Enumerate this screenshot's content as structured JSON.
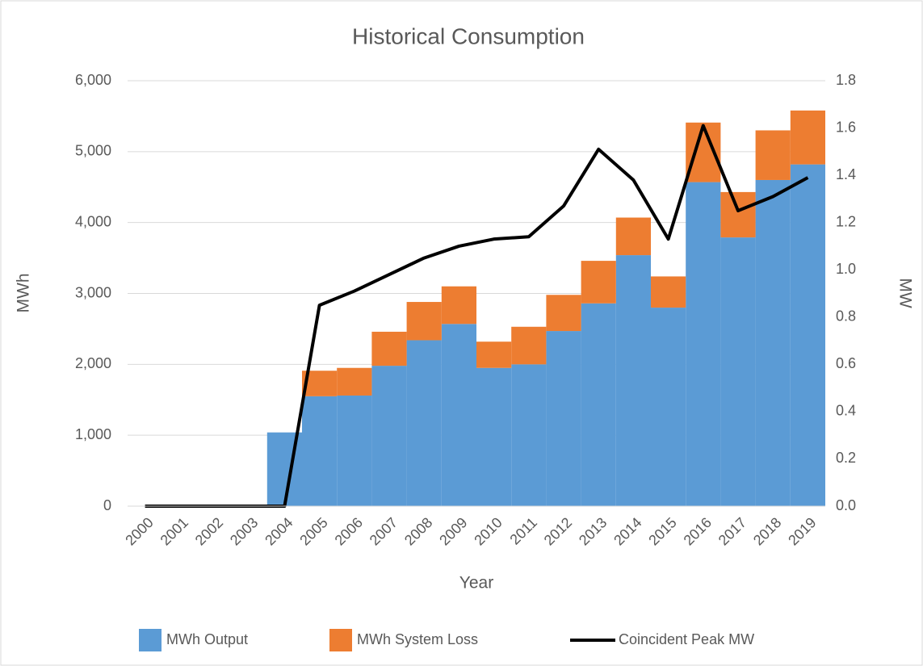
{
  "chart_data": {
    "type": "bar",
    "stacked": true,
    "title": "Historical Consumption",
    "xlabel": "Year",
    "ylabel": "MWh",
    "y2label": "MW",
    "categories": [
      "2000",
      "2001",
      "2002",
      "2003",
      "2004",
      "2005",
      "2006",
      "2007",
      "2008",
      "2009",
      "2010",
      "2011",
      "2012",
      "2013",
      "2014",
      "2015",
      "2016",
      "2017",
      "2018",
      "2019"
    ],
    "series": [
      {
        "name": "MWh Output",
        "type": "bar",
        "color": "#5b9bd5",
        "values": [
          0,
          0,
          0,
          0,
          1040,
          1550,
          1560,
          1980,
          2340,
          2570,
          1950,
          2000,
          2470,
          2860,
          3540,
          2800,
          4570,
          3790,
          4600,
          4820
        ]
      },
      {
        "name": "MWh System Loss",
        "type": "bar",
        "color": "#ed7d31",
        "values": [
          0,
          0,
          0,
          0,
          0,
          360,
          390,
          480,
          540,
          530,
          370,
          530,
          510,
          600,
          530,
          440,
          840,
          640,
          700,
          760
        ]
      },
      {
        "name": "Coincident Peak MW",
        "type": "line",
        "axis": "y2",
        "color": "#000000",
        "values": [
          0,
          0,
          0,
          0,
          0,
          0.85,
          0.91,
          0.98,
          1.05,
          1.1,
          1.13,
          1.14,
          1.27,
          1.51,
          1.38,
          1.13,
          1.61,
          1.25,
          1.31,
          1.39
        ]
      }
    ],
    "ylim": [
      0,
      6000
    ],
    "yticks": [
      0,
      {
        "value": 1000,
        "label": "1,000"
      },
      {
        "value": 2000,
        "label": "2,000"
      },
      {
        "value": 3000,
        "label": "3,000"
      },
      {
        "value": 4000,
        "label": "4,000"
      },
      {
        "value": 5000,
        "label": "5,000"
      },
      {
        "value": 6000,
        "label": "6,000"
      }
    ],
    "y2lim": [
      0,
      1.8
    ],
    "y2ticks": [
      {
        "value": 0,
        "label": "0.0"
      },
      0.2,
      0.4,
      0.6,
      0.8,
      {
        "value": 1,
        "label": "1.0"
      },
      1.2,
      1.4,
      1.6,
      1.8
    ],
    "grid": true,
    "legend": "bottom"
  }
}
